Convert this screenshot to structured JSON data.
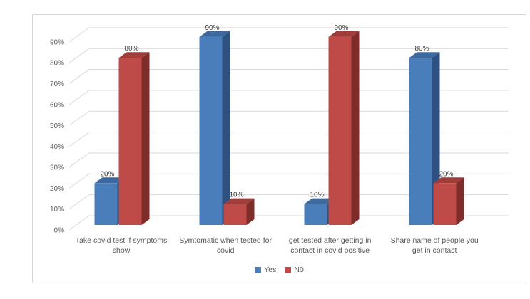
{
  "chart_data": {
    "type": "bar",
    "variant": "3d-clustered-column",
    "title": "",
    "xlabel": "",
    "ylabel": "",
    "categories": [
      "Take covid test if symptoms\nshow",
      "Symtomatic when tested for\ncovid",
      "get tested after getting in\ncontact in covid positive",
      "Share name of people you\nget in contact"
    ],
    "series": [
      {
        "name": "Yes",
        "color": "#4a7ebb",
        "color_top": "#3e699e",
        "color_side": "#2e5181",
        "values": [
          20,
          90,
          10,
          80
        ]
      },
      {
        "name": "N0",
        "color": "#bf4b48",
        "color_top": "#a03c39",
        "color_side": "#7e2d2b",
        "values": [
          80,
          10,
          90,
          20
        ]
      }
    ],
    "data_labels_shown": true,
    "value_suffix": "%",
    "y_ticks": [
      "0%",
      "10%",
      "20%",
      "30%",
      "40%",
      "50%",
      "60%",
      "70%",
      "80%",
      "90%"
    ],
    "y_step": 10,
    "ylim": [
      0,
      90
    ],
    "grid": true,
    "legend_position": "bottom",
    "colors": {
      "axis_text": "#595959",
      "data_label_text": "#404040",
      "gridline": "#d9d9d9",
      "card_border": "#d9d9d9",
      "background": "#ffffff"
    }
  }
}
